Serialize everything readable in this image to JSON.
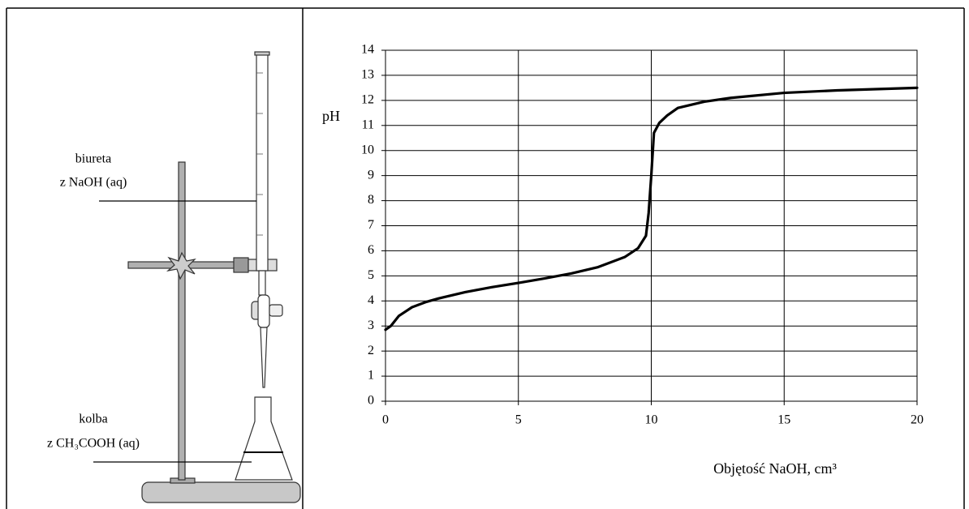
{
  "diagram": {
    "labels": [
      "biureta",
      "z NaOH (aq)",
      "kolba",
      "z CH₃COOH (aq)"
    ]
  },
  "chart_data": {
    "type": "line",
    "x_label": "Objętość NaOH, cm³",
    "y_label": "pH",
    "x": [
      0,
      0.2,
      0.5,
      1,
      1.5,
      2,
      3,
      4,
      5,
      6,
      7,
      8,
      9,
      9.5,
      9.8,
      9.9,
      10,
      10.1,
      10.3,
      10.6,
      11,
      12,
      13,
      15,
      17,
      20
    ],
    "values": [
      2.85,
      3.0,
      3.4,
      3.75,
      3.95,
      4.1,
      4.35,
      4.55,
      4.72,
      4.9,
      5.1,
      5.35,
      5.75,
      6.1,
      6.6,
      7.5,
      9,
      10.7,
      11.1,
      11.4,
      11.7,
      11.95,
      12.1,
      12.3,
      12.4,
      12.5
    ],
    "color": "#000000",
    "xlim": [
      0,
      20
    ],
    "ylim": [
      0,
      14
    ],
    "xticks": [
      0,
      5,
      10,
      15,
      20
    ],
    "yticks": [
      0,
      1,
      2,
      3,
      4,
      5,
      6,
      7,
      8,
      9,
      10,
      11,
      12,
      13,
      14
    ],
    "grid": true
  }
}
